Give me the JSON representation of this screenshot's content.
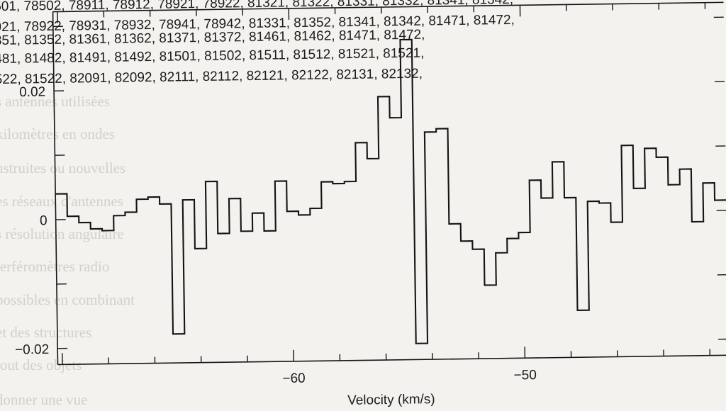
{
  "header_lines": [
    "501,   78502,   78911,   78912,   78921,   78922,   81321,   81322,   81331,   81332,   81341,   81342,",
    "921,   78922,   78931,   78932,   78941,   78942,   81331,   81352,   81341,   81342,   81471,   81472,",
    "351,   81352,   81361,   81362,   81371,   81372,   81461,   81462,   81471,   81472,",
    "481,   81482,   81491,   81492,   81501,   81502,   81511,   81512,   81521,   81521,",
    "522,   81522,   82091,   82092,   82111,   82112,   82121,   82122,   82131,   82132,"
  ],
  "bleed_text": [
    "s antennes utilisées",
    "kilomètres en ondes",
    "nstruites ou nouvelles",
    "es réseaux d'antennes",
    "s résolution angulaire",
    "terféromètres radio",
    "possibles en combinant",
    "et des structures",
    "tout des objets",
    "donner une vue"
  ],
  "chart_data": {
    "type": "line",
    "style": "step",
    "xlabel": "Velocity (km/s)",
    "ylabel": "",
    "xlim": [
      -70.2,
      -41.2
    ],
    "ylim": [
      -0.0225,
      0.0323
    ],
    "x_ticks": [
      -60,
      -50
    ],
    "y_ticks": [
      -0.02,
      0,
      0.02
    ],
    "x_tick_labels": [
      "−60",
      "−50"
    ],
    "y_tick_labels": [
      "−0.02",
      "0",
      "0.02"
    ],
    "grid": false,
    "line_color": "#141414",
    "series": [
      {
        "x": [
          -70.2,
          -69.7,
          -69.2,
          -68.7,
          -68.2,
          -67.7,
          -67.2,
          -66.7,
          -66.2,
          -65.7,
          -65.2,
          -64.7,
          -64.2,
          -63.7,
          -63.2,
          -62.7,
          -62.2,
          -61.7,
          -61.2,
          -60.7,
          -60.2,
          -59.7,
          -59.2,
          -58.7,
          -58.2,
          -57.7,
          -57.2,
          -56.7,
          -56.2,
          -55.7,
          -55.2,
          -54.7,
          -54.2,
          -53.7,
          -53.2,
          -52.7,
          -52.2,
          -51.7,
          -51.2,
          -50.7,
          -50.2,
          -49.7,
          -49.2,
          -48.7,
          -48.2,
          -47.7,
          -47.2,
          -46.7,
          -46.2,
          -45.7,
          -45.2,
          -44.7,
          -44.2,
          -43.7,
          -43.2,
          -42.7,
          -42.2,
          -41.7
        ],
        "y": [
          0.004,
          0.0005,
          -0.0005,
          -0.0015,
          -0.0018,
          0.0005,
          0.001,
          0.003,
          0.0033,
          0.0022,
          -0.018,
          0.0028,
          -0.0048,
          0.0056,
          -0.0025,
          0.0029,
          -0.0022,
          0.0006,
          -0.0022,
          0.0055,
          0.0008,
          0.0002,
          0.0012,
          0.0053,
          0.005,
          0.0053,
          0.0113,
          0.0088,
          0.0184,
          0.0151,
          0.0272,
          -0.02,
          0.0128,
          0.0133,
          -0.0015,
          -0.0042,
          -0.0055,
          -0.0111,
          -0.0061,
          -0.0039,
          -0.003,
          0.0051,
          0.0023,
          0.0079,
          0.0023,
          -0.0152,
          0.0017,
          0.0014,
          -0.0016,
          0.0103,
          0.0036,
          0.0098,
          0.0084,
          0.0041,
          0.0065,
          -0.0017,
          0.0043,
          0.0016
        ]
      }
    ]
  }
}
